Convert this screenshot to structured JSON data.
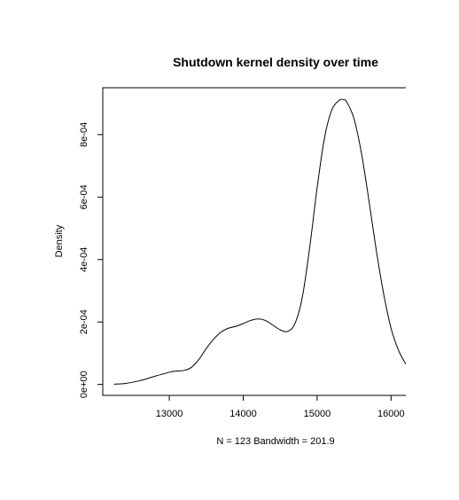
{
  "chart_data": {
    "type": "line",
    "title": "Shutdown kernel density over time",
    "xlabel": "N = 123   Bandwidth = 201.9",
    "ylabel": "Density",
    "xlim": [
      12100,
      16200
    ],
    "ylim": [
      -3.5e-05,
      0.00095
    ],
    "xticks": [
      13000,
      14000,
      15000,
      16000
    ],
    "xtick_labels": [
      "13000",
      "14000",
      "15000",
      "16000"
    ],
    "yticks": [
      0,
      0.0002,
      0.0004,
      0.0006,
      0.0008
    ],
    "ytick_labels": [
      "0e+00",
      "2e-04",
      "4e-04",
      "6e-04",
      "8e-04"
    ],
    "grid": false,
    "series": [
      {
        "x": [
          12250,
          12400,
          12600,
          12800,
          13000,
          13100,
          13200,
          13300,
          13400,
          13500,
          13600,
          13700,
          13800,
          13900,
          14000,
          14100,
          14200,
          14300,
          14400,
          14500,
          14600,
          14700,
          14800,
          14900,
          15000,
          15100,
          15200,
          15300,
          15350,
          15400,
          15500,
          15600,
          15700,
          15800,
          15900,
          16000,
          16100,
          16200
        ],
        "y": [
          1e-06,
          3e-06,
          1.2e-05,
          2.6e-05,
          3.9e-05,
          4.3e-05,
          4.5e-05,
          5.5e-05,
          8e-05,
          0.000115,
          0.000145,
          0.000168,
          0.00018,
          0.000186,
          0.000195,
          0.000205,
          0.00021,
          0.000205,
          0.00019,
          0.000175,
          0.00017,
          0.000195,
          0.00028,
          0.00044,
          0.00063,
          0.00079,
          0.00088,
          0.00091,
          0.000912,
          0.000905,
          0.00085,
          0.00074,
          0.00059,
          0.00043,
          0.00029,
          0.00018,
          0.00011,
          6.5e-05
        ]
      }
    ]
  }
}
